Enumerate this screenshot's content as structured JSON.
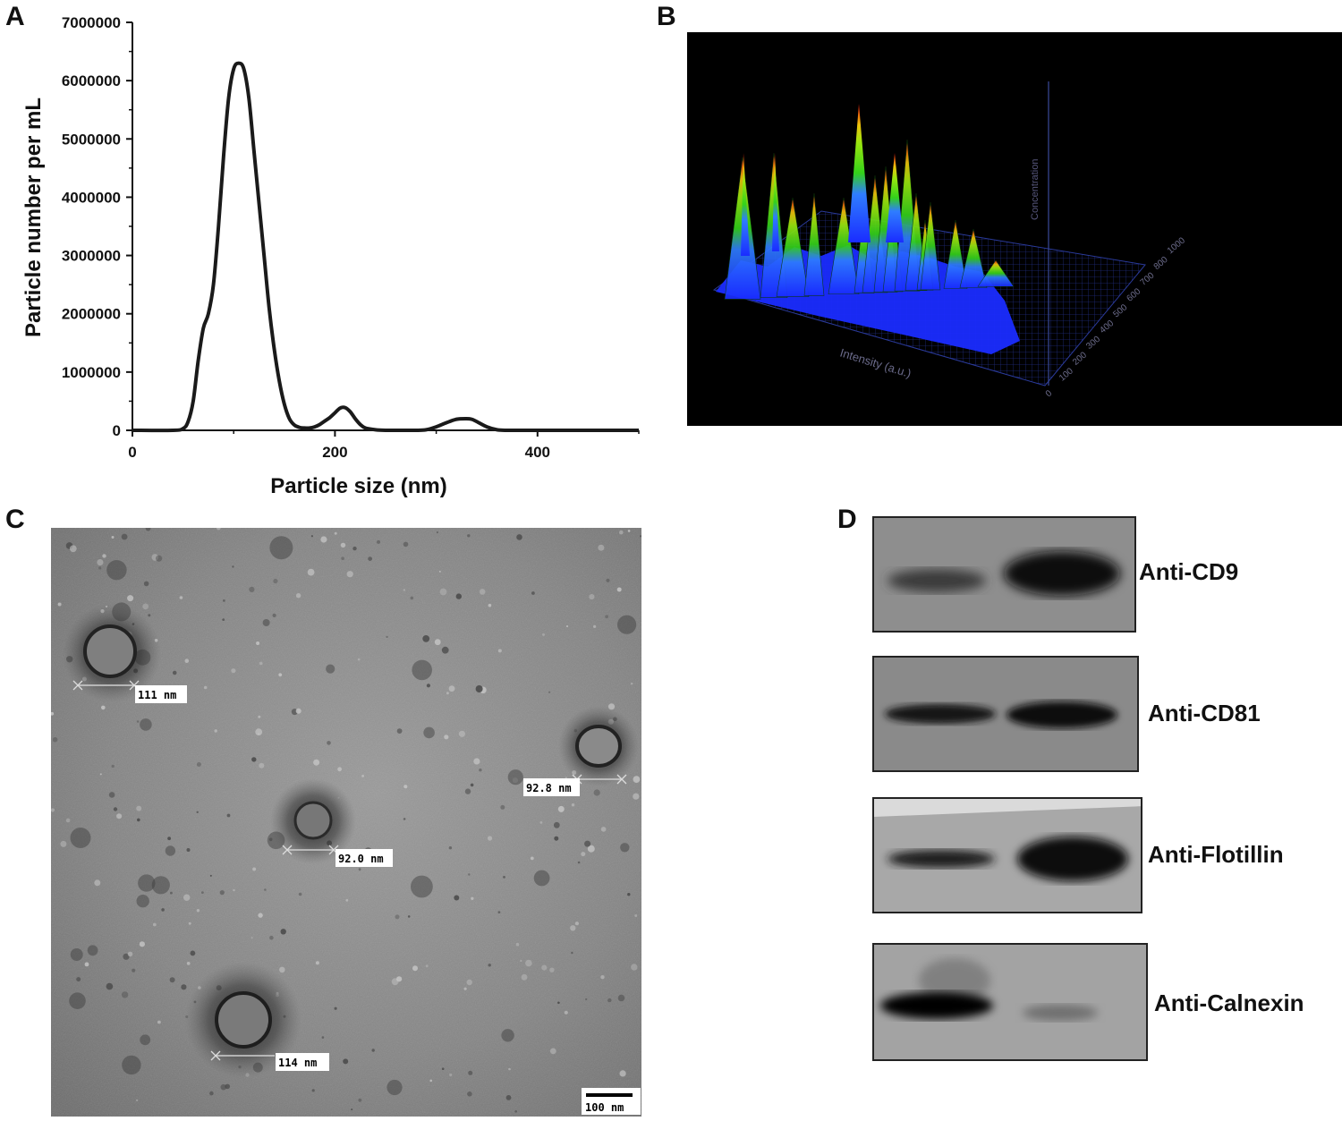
{
  "panels": {
    "a": "A",
    "b": "B",
    "c": "C",
    "d": "D"
  },
  "chart_data": {
    "type": "line",
    "xlabel": "Particle size (nm)",
    "ylabel": "Particle number per mL",
    "xlim": [
      0,
      500
    ],
    "ylim": [
      0,
      7000000
    ],
    "xticks": [
      "0",
      "200",
      "400"
    ],
    "yticks": [
      "0",
      "1000000",
      "2000000",
      "3000000",
      "4000000",
      "5000000",
      "6000000",
      "7000000"
    ],
    "x": [
      0,
      40,
      50,
      55,
      60,
      65,
      70,
      75,
      80,
      85,
      90,
      95,
      100,
      105,
      110,
      115,
      120,
      125,
      130,
      135,
      140,
      145,
      150,
      155,
      160,
      165,
      170,
      175,
      180,
      185,
      190,
      195,
      200,
      205,
      210,
      215,
      220,
      225,
      230,
      240,
      250,
      260,
      270,
      280,
      290,
      300,
      310,
      320,
      330,
      335,
      340,
      350,
      360,
      370,
      380,
      500
    ],
    "y": [
      0,
      0,
      30000,
      150000,
      500000,
      1200000,
      1750000,
      2000000,
      2500000,
      3500000,
      4700000,
      5700000,
      6200000,
      6300000,
      6200000,
      5700000,
      4800000,
      3900000,
      3000000,
      2100000,
      1400000,
      850000,
      450000,
      200000,
      90000,
      50000,
      40000,
      40000,
      60000,
      100000,
      160000,
      220000,
      300000,
      380000,
      390000,
      320000,
      200000,
      100000,
      40000,
      10000,
      0,
      0,
      0,
      0,
      10000,
      60000,
      130000,
      190000,
      200000,
      190000,
      150000,
      60000,
      10000,
      0,
      0,
      0
    ]
  },
  "panel_b": {
    "axis_intensity": "Intensity (a.u.)",
    "axis_concentration": "Concentration",
    "depth_ticks": [
      "1000",
      "800",
      "700",
      "600",
      "500",
      "400",
      "300",
      "200",
      "100",
      "0"
    ]
  },
  "panel_c": {
    "measurements": [
      "111 nm",
      "92.8 nm",
      "92.0 nm",
      "114 nm"
    ],
    "scalebar": "100 nm"
  },
  "panel_d": {
    "blots": [
      "Anti-CD9",
      "Anti-CD81",
      "Anti-Flotillin",
      "Anti-Calnexin"
    ]
  }
}
